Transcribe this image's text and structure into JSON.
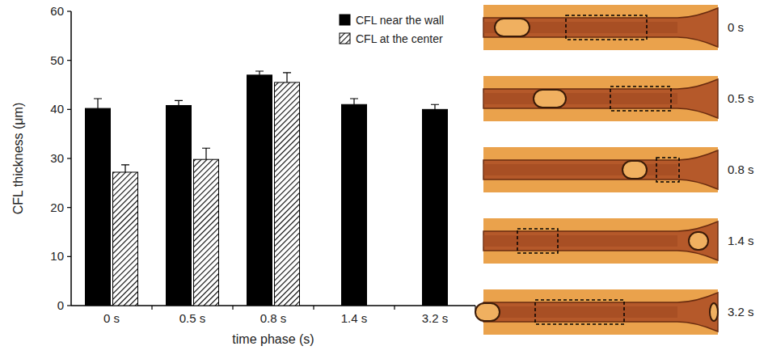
{
  "chart_data": {
    "type": "bar",
    "y_label": "CFL thickness (μm)",
    "x_label": "time phase (s)",
    "categories": [
      "0 s",
      "0.5 s",
      "0.8 s",
      "1.4 s",
      "3.2 s"
    ],
    "series": [
      {
        "name": "CFL near the wall",
        "color": "#000000",
        "values": [
          40.2,
          40.8,
          47.0,
          41.0,
          40.0
        ],
        "errors": [
          2.0,
          1.0,
          0.8,
          1.2,
          1.0
        ]
      },
      {
        "name": "CFL at the center",
        "color": "#000000",
        "values": [
          27.2,
          29.8,
          45.5,
          null,
          null
        ],
        "errors": [
          1.5,
          2.3,
          2.0,
          null,
          null
        ]
      }
    ],
    "ylim": [
      0,
      60
    ],
    "yticks": [
      0,
      10,
      20,
      30,
      40,
      50,
      60
    ],
    "grid": false,
    "legend": "top-right"
  }
}
